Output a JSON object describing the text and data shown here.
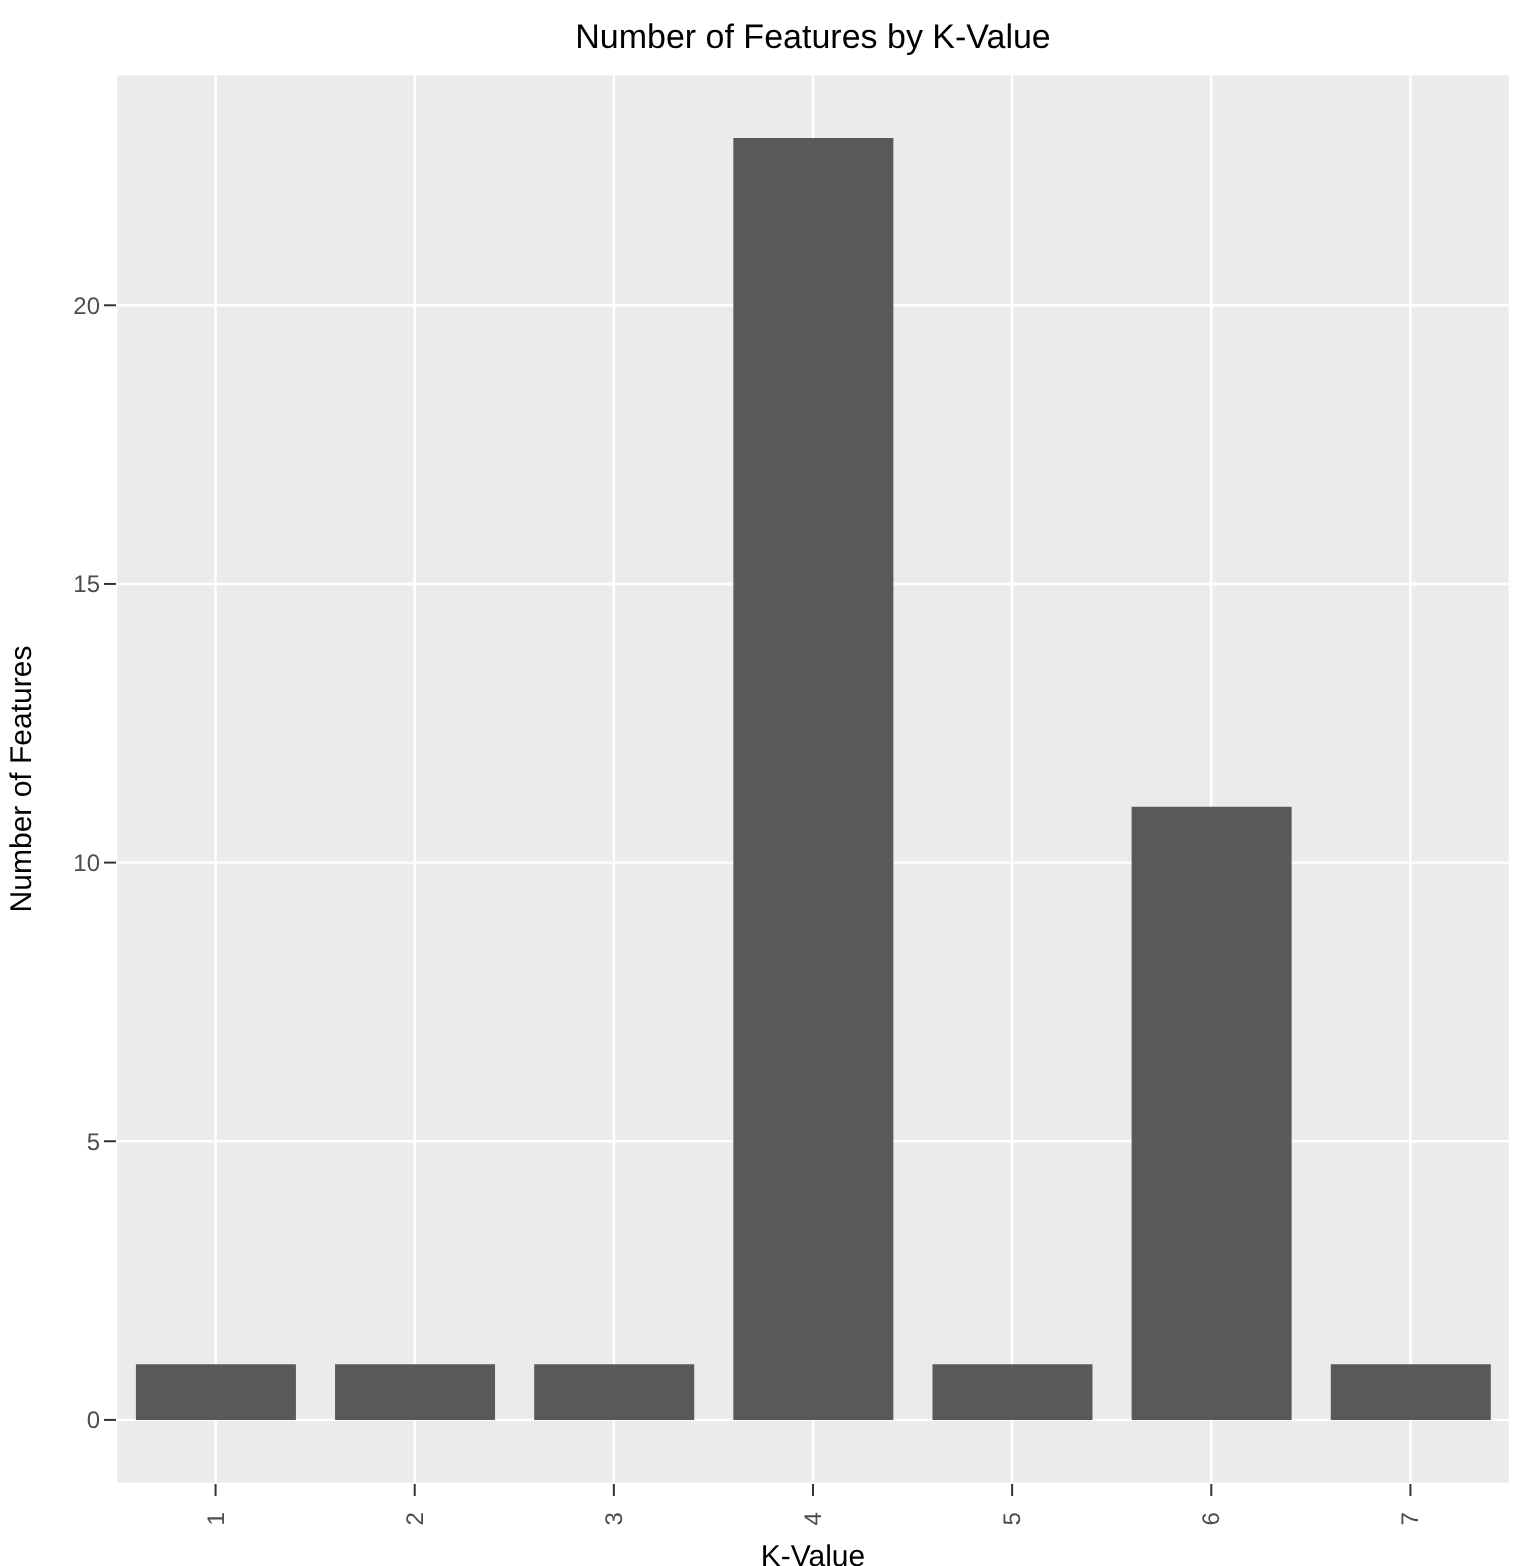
{
  "chart_data": {
    "type": "bar",
    "title": "Number of Features by K-Value",
    "xlabel": "K-Value",
    "ylabel": "Number of Features",
    "categories": [
      "1",
      "2",
      "3",
      "4",
      "5",
      "6",
      "7"
    ],
    "values": [
      1,
      1,
      1,
      23,
      1,
      11,
      1
    ],
    "color": "#595959",
    "ylim": [
      -1.15,
      24.15
    ],
    "yticks": [
      0,
      5,
      10,
      15,
      20
    ],
    "grid": true
  }
}
